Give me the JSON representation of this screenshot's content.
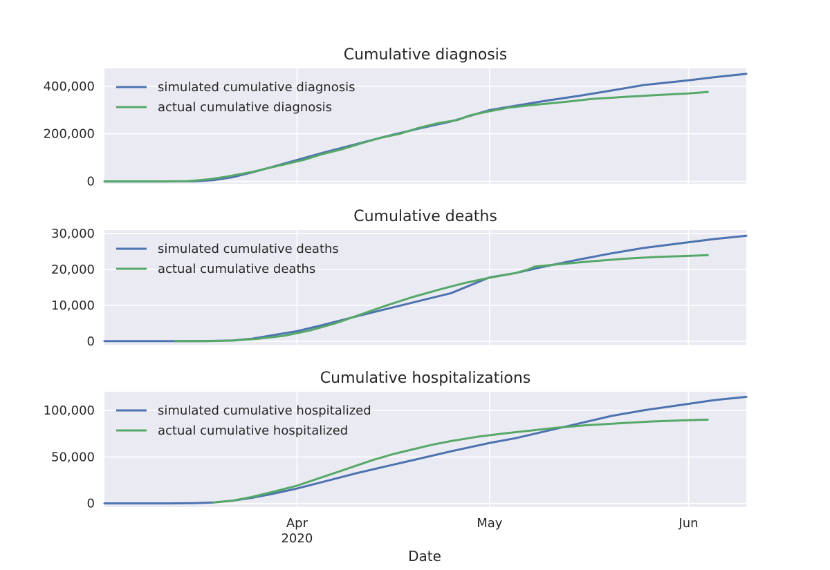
{
  "figure": {
    "xlabel": "Date",
    "colors": {
      "axes_bg": "#eaeaf2",
      "grid": "#ffffff",
      "simulated": "#4c72b0",
      "actual": "#55a868",
      "text": "#262626"
    }
  },
  "x_axis": {
    "range": [
      "2020-03-02",
      "2020-06-10"
    ],
    "ticks": [
      {
        "date": "2020-04-01",
        "label": "Apr",
        "sublabel": "2020"
      },
      {
        "date": "2020-05-01",
        "label": "May",
        "sublabel": ""
      },
      {
        "date": "2020-06-01",
        "label": "Jun",
        "sublabel": ""
      }
    ]
  },
  "chart_data": [
    {
      "type": "line",
      "title": "Cumulative diagnosis",
      "ylim": [
        -10000,
        475000
      ],
      "yticks": [
        0,
        200000,
        400000
      ],
      "grid": true,
      "legend": "top-left",
      "series": [
        {
          "name": "simulated cumulative diagnosis",
          "color_key": "simulated",
          "points": [
            [
              "2020-03-02",
              0
            ],
            [
              "2020-03-08",
              0
            ],
            [
              "2020-03-12",
              0
            ],
            [
              "2020-03-16",
              500
            ],
            [
              "2020-03-19",
              5000
            ],
            [
              "2020-03-22",
              18000
            ],
            [
              "2020-03-25",
              38000
            ],
            [
              "2020-03-28",
              60000
            ],
            [
              "2020-04-01",
              90000
            ],
            [
              "2020-04-05",
              120000
            ],
            [
              "2020-04-10",
              155000
            ],
            [
              "2020-04-15",
              190000
            ],
            [
              "2020-04-20",
              222000
            ],
            [
              "2020-04-25",
              252000
            ],
            [
              "2020-05-01",
              300000
            ],
            [
              "2020-05-05",
              318000
            ],
            [
              "2020-05-10",
              340000
            ],
            [
              "2020-05-15",
              360000
            ],
            [
              "2020-05-20",
              382000
            ],
            [
              "2020-05-25",
              405000
            ],
            [
              "2020-06-01",
              425000
            ],
            [
              "2020-06-05",
              438000
            ],
            [
              "2020-06-10",
              452000
            ]
          ]
        },
        {
          "name": "actual cumulative diagnosis",
          "color_key": "actual",
          "points": [
            [
              "2020-03-02",
              0
            ],
            [
              "2020-03-10",
              0
            ],
            [
              "2020-03-15",
              1000
            ],
            [
              "2020-03-18",
              8000
            ],
            [
              "2020-03-21",
              20000
            ],
            [
              "2020-03-25",
              40000
            ],
            [
              "2020-03-29",
              65000
            ],
            [
              "2020-04-02",
              90000
            ],
            [
              "2020-04-05",
              115000
            ],
            [
              "2020-04-08",
              135000
            ],
            [
              "2020-04-11",
              160000
            ],
            [
              "2020-04-14",
              183000
            ],
            [
              "2020-04-17",
              200000
            ],
            [
              "2020-04-20",
              225000
            ],
            [
              "2020-04-23",
              245000
            ],
            [
              "2020-04-26",
              258000
            ],
            [
              "2020-04-28",
              278000
            ],
            [
              "2020-05-01",
              295000
            ],
            [
              "2020-05-04",
              310000
            ],
            [
              "2020-05-08",
              322000
            ],
            [
              "2020-05-13",
              335000
            ],
            [
              "2020-05-17",
              347000
            ],
            [
              "2020-05-22",
              355000
            ],
            [
              "2020-05-27",
              363000
            ],
            [
              "2020-06-01",
              370000
            ],
            [
              "2020-06-04",
              376000
            ]
          ]
        }
      ]
    },
    {
      "type": "line",
      "title": "Cumulative deaths",
      "ylim": [
        -1000,
        31000
      ],
      "yticks": [
        0,
        10000,
        20000,
        30000
      ],
      "grid": true,
      "legend": "top-left",
      "series": [
        {
          "name": "simulated cumulative deaths",
          "color_key": "simulated",
          "points": [
            [
              "2020-03-02",
              0
            ],
            [
              "2020-03-12",
              0
            ],
            [
              "2020-03-18",
              50
            ],
            [
              "2020-03-22",
              200
            ],
            [
              "2020-03-25",
              700
            ],
            [
              "2020-03-28",
              1600
            ],
            [
              "2020-04-01",
              2800
            ],
            [
              "2020-04-05",
              4500
            ],
            [
              "2020-04-10",
              6800
            ],
            [
              "2020-04-15",
              9000
            ],
            [
              "2020-04-20",
              11200
            ],
            [
              "2020-04-25",
              13400
            ],
            [
              "2020-05-01",
              17800
            ],
            [
              "2020-05-05",
              19000
            ],
            [
              "2020-05-10",
              21000
            ],
            [
              "2020-05-15",
              22800
            ],
            [
              "2020-05-20",
              24500
            ],
            [
              "2020-05-25",
              26000
            ],
            [
              "2020-06-01",
              27600
            ],
            [
              "2020-06-05",
              28500
            ],
            [
              "2020-06-10",
              29400
            ]
          ]
        },
        {
          "name": "actual cumulative deaths",
          "color_key": "actual",
          "points": [
            [
              "2020-03-13",
              0
            ],
            [
              "2020-03-18",
              20
            ],
            [
              "2020-03-22",
              150
            ],
            [
              "2020-03-26",
              700
            ],
            [
              "2020-03-30",
              1500
            ],
            [
              "2020-04-03",
              3000
            ],
            [
              "2020-04-07",
              5000
            ],
            [
              "2020-04-11",
              7500
            ],
            [
              "2020-04-15",
              10000
            ],
            [
              "2020-04-19",
              12300
            ],
            [
              "2020-04-23",
              14300
            ],
            [
              "2020-04-27",
              16200
            ],
            [
              "2020-05-01",
              17700
            ],
            [
              "2020-05-05",
              19000
            ],
            [
              "2020-05-07",
              20000
            ],
            [
              "2020-05-08",
              20800
            ],
            [
              "2020-05-12",
              21500
            ],
            [
              "2020-05-17",
              22300
            ],
            [
              "2020-05-22",
              23000
            ],
            [
              "2020-05-27",
              23500
            ],
            [
              "2020-06-01",
              23800
            ],
            [
              "2020-06-04",
              24000
            ]
          ]
        }
      ]
    },
    {
      "type": "line",
      "title": "Cumulative hospitalizations",
      "ylim": [
        -4000,
        120000
      ],
      "yticks": [
        0,
        50000,
        100000
      ],
      "grid": true,
      "legend": "top-left",
      "series": [
        {
          "name": "simulated cumulative hospitalized",
          "color_key": "simulated",
          "points": [
            [
              "2020-03-02",
              0
            ],
            [
              "2020-03-12",
              0
            ],
            [
              "2020-03-16",
              300
            ],
            [
              "2020-03-19",
              1000
            ],
            [
              "2020-03-22",
              3000
            ],
            [
              "2020-03-25",
              6000
            ],
            [
              "2020-03-28",
              10000
            ],
            [
              "2020-04-01",
              16000
            ],
            [
              "2020-04-05",
              23000
            ],
            [
              "2020-04-10",
              32000
            ],
            [
              "2020-04-15",
              40000
            ],
            [
              "2020-04-20",
              48000
            ],
            [
              "2020-04-25",
              56000
            ],
            [
              "2020-05-01",
              65000
            ],
            [
              "2020-05-05",
              70000
            ],
            [
              "2020-05-10",
              78000
            ],
            [
              "2020-05-15",
              86000
            ],
            [
              "2020-05-20",
              94000
            ],
            [
              "2020-05-25",
              100000
            ],
            [
              "2020-06-01",
              107000
            ],
            [
              "2020-06-05",
              111000
            ],
            [
              "2020-06-10",
              114500
            ]
          ]
        },
        {
          "name": "actual cumulative hospitalized",
          "color_key": "actual",
          "points": [
            [
              "2020-03-19",
              1000
            ],
            [
              "2020-03-22",
              3000
            ],
            [
              "2020-03-25",
              7000
            ],
            [
              "2020-03-28",
              12000
            ],
            [
              "2020-04-01",
              19000
            ],
            [
              "2020-04-04",
              26000
            ],
            [
              "2020-04-07",
              33000
            ],
            [
              "2020-04-10",
              40000
            ],
            [
              "2020-04-13",
              47000
            ],
            [
              "2020-04-16",
              53000
            ],
            [
              "2020-04-19",
              58000
            ],
            [
              "2020-04-22",
              63000
            ],
            [
              "2020-04-25",
              67000
            ],
            [
              "2020-04-29",
              71500
            ],
            [
              "2020-05-03",
              75000
            ],
            [
              "2020-05-07",
              78000
            ],
            [
              "2020-05-11",
              81000
            ],
            [
              "2020-05-16",
              84000
            ],
            [
              "2020-05-21",
              86000
            ],
            [
              "2020-05-26",
              88000
            ],
            [
              "2020-06-01",
              89500
            ],
            [
              "2020-06-04",
              90000
            ]
          ]
        }
      ]
    }
  ]
}
